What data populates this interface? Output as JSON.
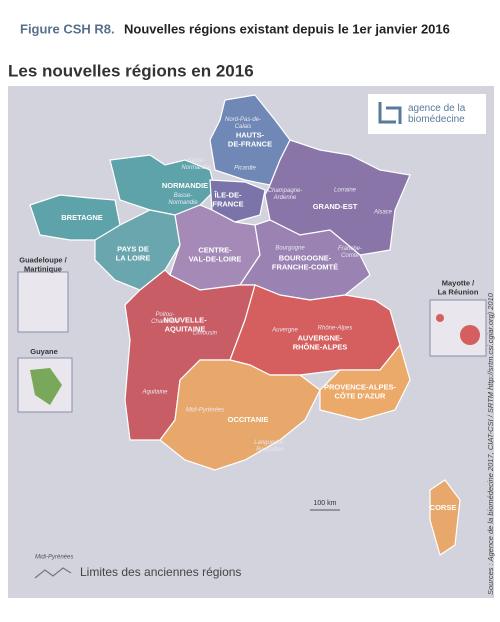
{
  "header": {
    "figure_label": "Figure CSH R8.",
    "title": "Nouvelles régions existant depuis le 1er janvier 2016"
  },
  "map": {
    "title": "Les nouvelles régions en 2016",
    "logo": {
      "lines": [
        "agence de la",
        "biomédecine"
      ]
    },
    "regions": [
      {
        "lines": [
          "HAUTS-",
          "DE-FRANCE"
        ]
      },
      {
        "lines": [
          "NORMANDIE"
        ]
      },
      {
        "lines": [
          "ÎLE-DE-",
          "FRANCE"
        ]
      },
      {
        "lines": [
          "GRAND-EST"
        ]
      },
      {
        "lines": [
          "BRETAGNE"
        ]
      },
      {
        "lines": [
          "PAYS DE",
          "LA LOIRE"
        ]
      },
      {
        "lines": [
          "CENTRE-",
          "VAL-DE-LOIRE"
        ]
      },
      {
        "lines": [
          "BOURGOGNE-",
          "FRANCHE-COMTÉ"
        ]
      },
      {
        "lines": [
          "NOUVELLE-",
          "AQUITAINE"
        ]
      },
      {
        "lines": [
          "AUVERGNE-",
          "RHÔNE-ALPES"
        ]
      },
      {
        "lines": [
          "OCCITANIE"
        ]
      },
      {
        "lines": [
          "PROVENCE-ALPES-",
          "CÔTE D'AZUR"
        ]
      },
      {
        "lines": [
          "CORSE"
        ]
      }
    ],
    "old_regions": [
      {
        "lines": [
          "Nord-Pas-de-",
          "Calais"
        ]
      },
      {
        "lines": [
          "Picardie"
        ]
      },
      {
        "lines": [
          "Haute-",
          "Normandie"
        ]
      },
      {
        "lines": [
          "Basse-",
          "Normandie"
        ]
      },
      {
        "lines": [
          "Champagne-",
          "Ardenne"
        ]
      },
      {
        "lines": [
          "Lorraine"
        ]
      },
      {
        "lines": [
          "Alsace"
        ]
      },
      {
        "lines": [
          "Bourgogne"
        ]
      },
      {
        "lines": [
          "Franche-",
          "Comté"
        ]
      },
      {
        "lines": [
          "Poitou-",
          "Charentes"
        ]
      },
      {
        "lines": [
          "Limousin"
        ]
      },
      {
        "lines": [
          "Aquitaine"
        ]
      },
      {
        "lines": [
          "Auvergne"
        ]
      },
      {
        "lines": [
          "Rhône-Alpes"
        ]
      },
      {
        "lines": [
          "Midi-Pyrénées"
        ]
      },
      {
        "lines": [
          "Languedoc-",
          "Roussillon"
        ]
      }
    ],
    "insets": [
      {
        "lines": [
          "Guadeloupe /",
          "Martinique"
        ]
      },
      {
        "lines": [
          "Guyane"
        ]
      },
      {
        "lines": [
          "Mayotte /",
          "La Réunion"
        ]
      }
    ],
    "scale": "100 km",
    "legend": {
      "sample": "Midi-Pyrénées",
      "label": "Limites des anciennes régions"
    },
    "source": "Sources : Agence de la biomédecine 2017, CIAT-CSI / SRTM http://srtm.csi.cgiar.org) 2010"
  }
}
